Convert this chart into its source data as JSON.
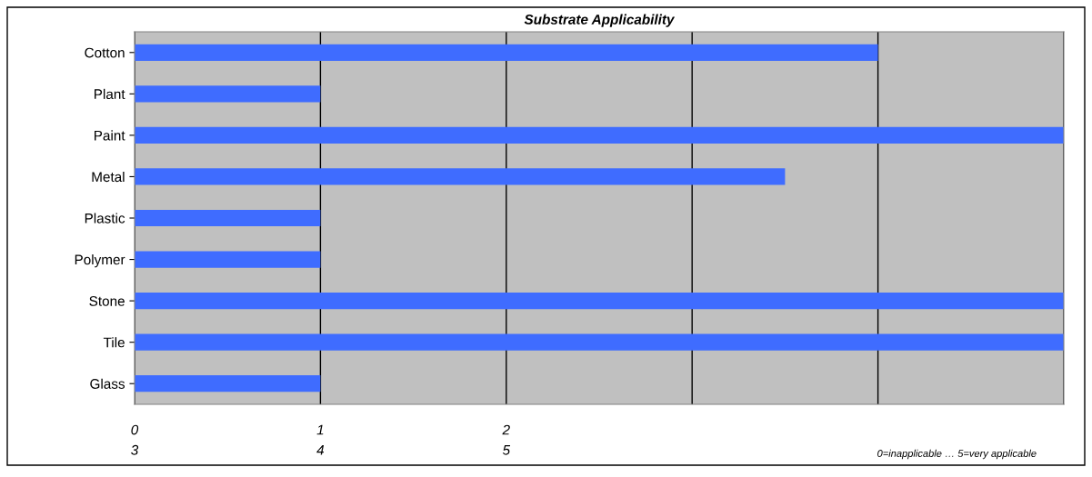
{
  "chart_data": {
    "type": "bar",
    "orientation": "horizontal",
    "title": "Substrate Applicability",
    "categories": [
      "Cotton",
      "Plant",
      "Paint",
      "Metal",
      "Plastic",
      "Polymer",
      "Stone",
      "Tile",
      "Glass"
    ],
    "values": [
      4,
      1,
      5,
      3.5,
      1,
      1,
      5,
      5,
      1
    ],
    "color": "#3f6cff",
    "xlim": [
      0,
      5
    ],
    "xticks": [
      0,
      1,
      2,
      {
        "value": 3,
        "label": null
      },
      {
        "value": 4,
        "label": null
      },
      {
        "value": 5,
        "label": null
      }
    ],
    "grid": "x",
    "annotations": [
      "3",
      "4",
      "5",
      "0=inapplicable … 5=very applicable"
    ]
  }
}
